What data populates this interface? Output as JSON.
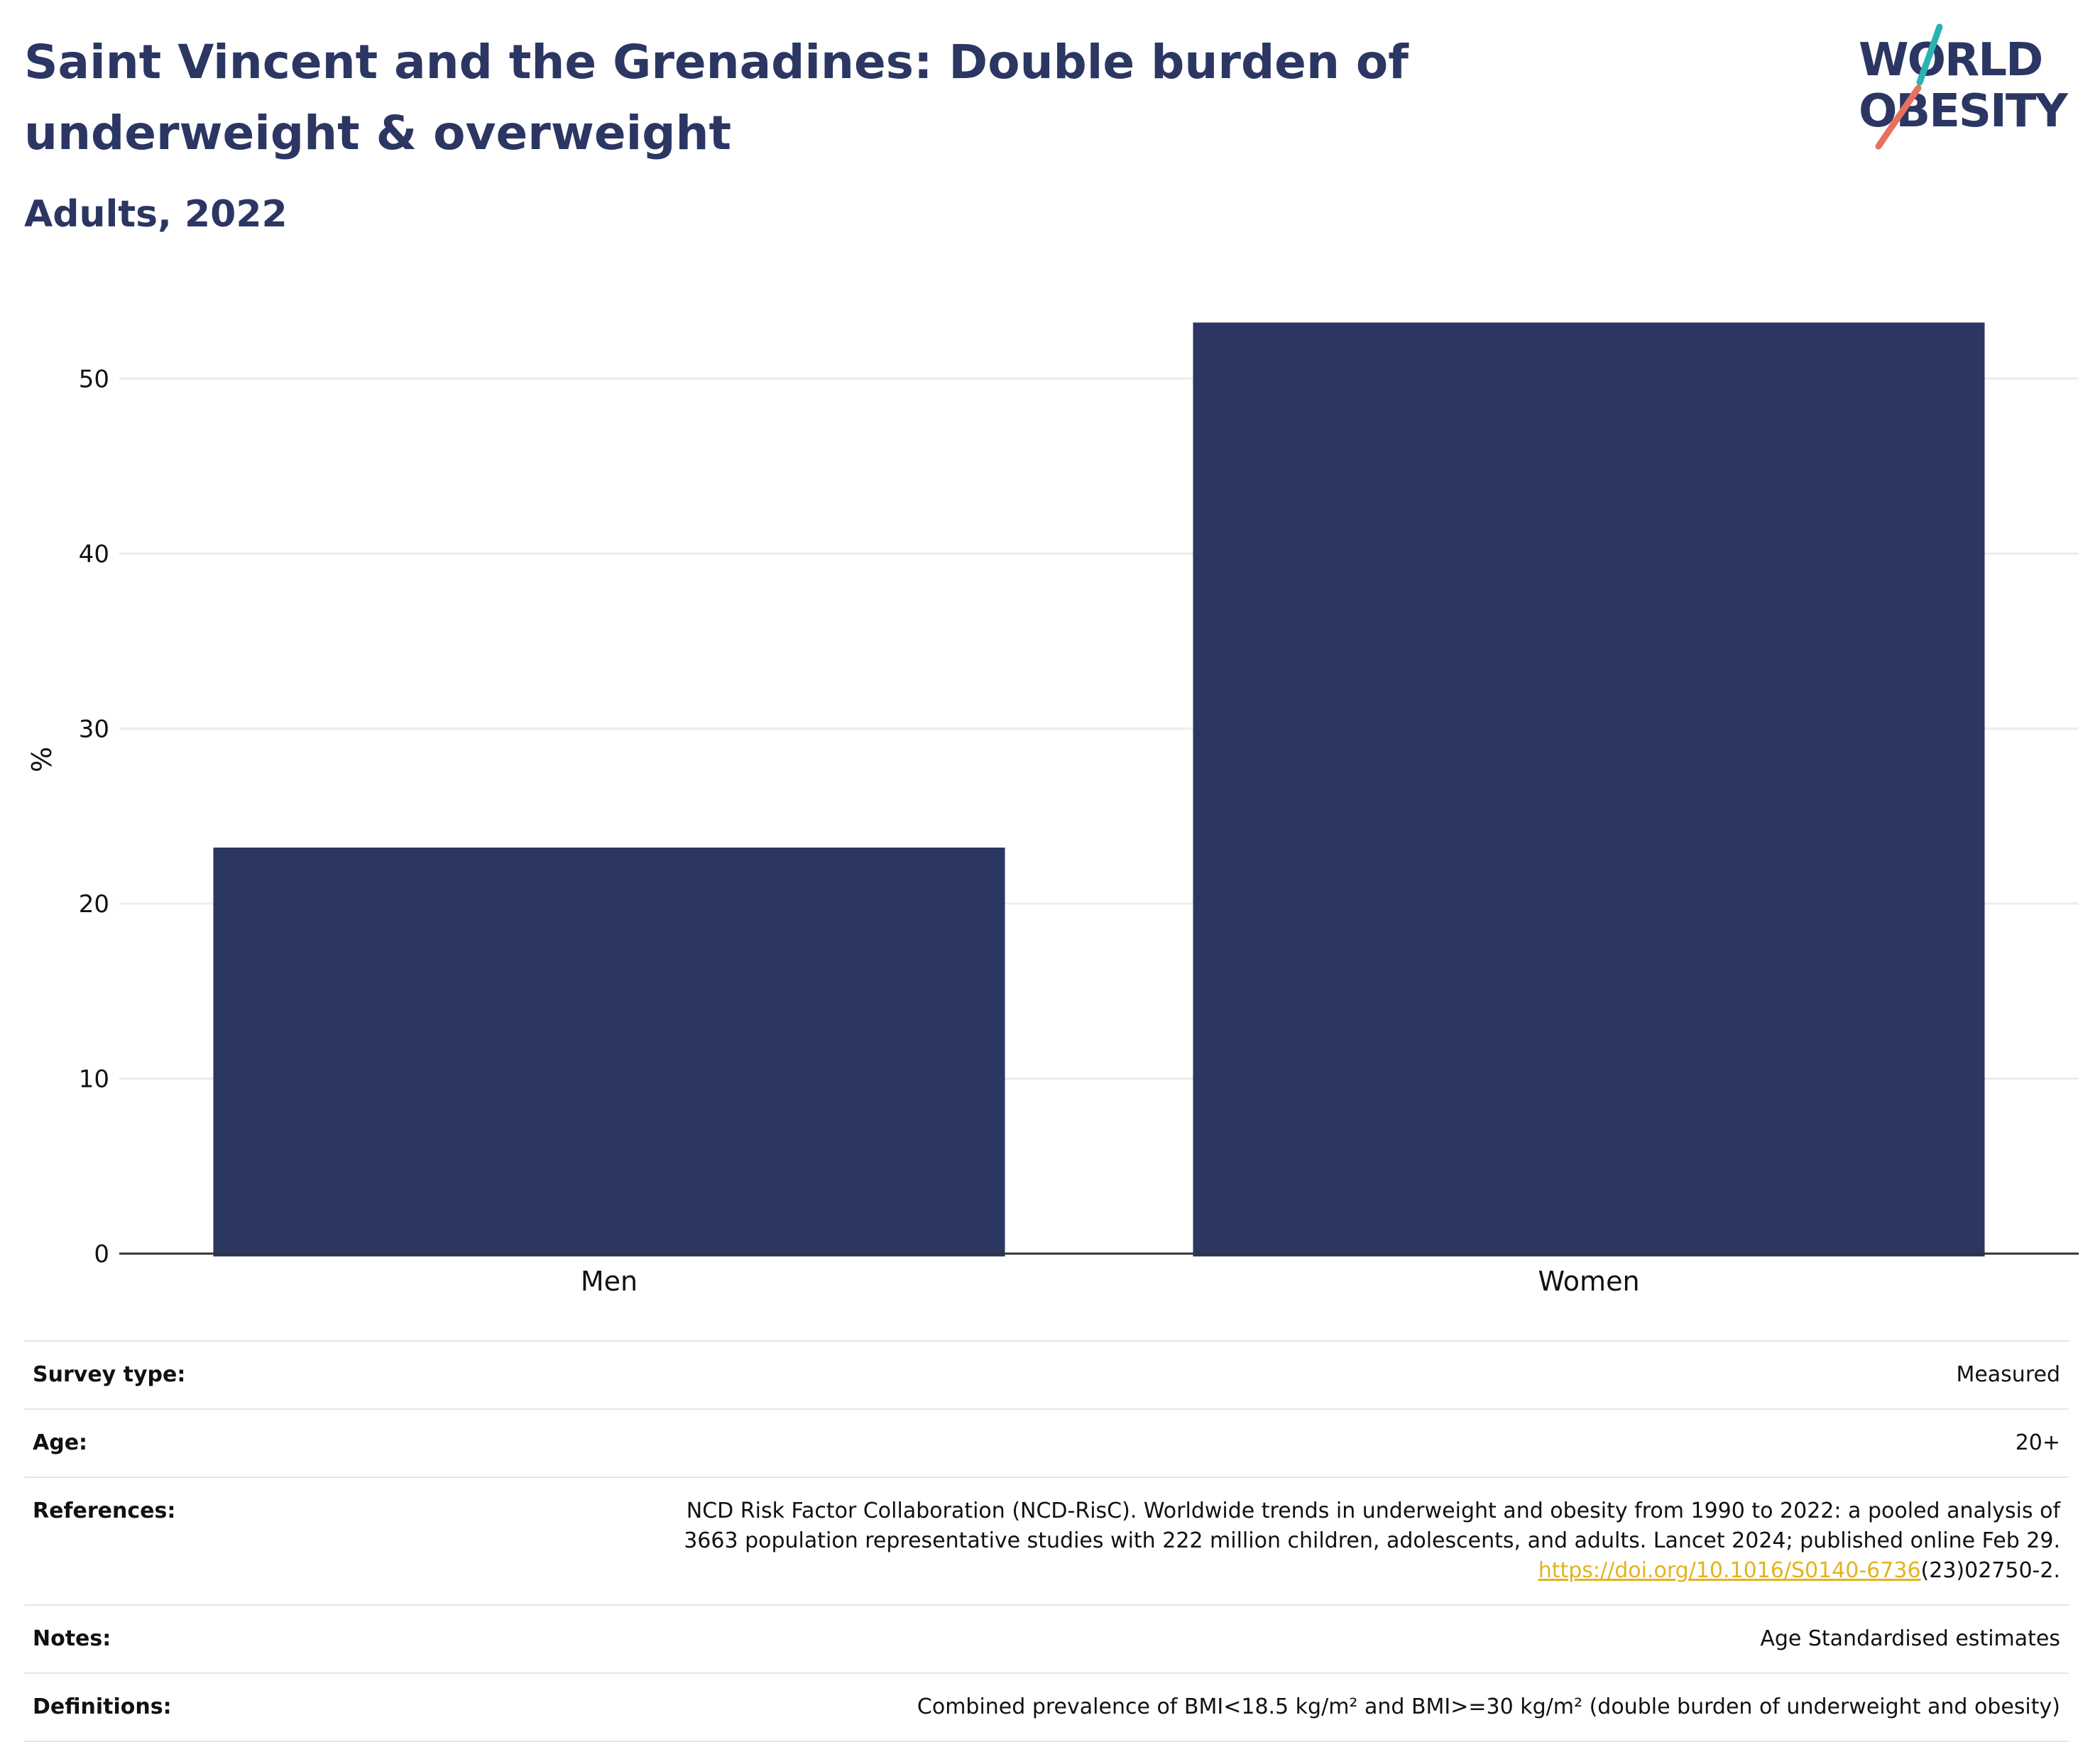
{
  "header": {
    "title": "Saint Vincent and the Grenadines: Double burden of underweight & overweight",
    "subtitle": "Adults, 2022"
  },
  "logo": {
    "line1": "WORLD",
    "line2": "OBESITY",
    "colors": {
      "text": "#2b3663",
      "slash_top": "#2bb3b1",
      "slash_bottom": "#e8705f"
    }
  },
  "colors": {
    "bar": "#2b3663",
    "grid": "#ececec",
    "axis": "#333333"
  },
  "chart_data": {
    "type": "bar",
    "categories": [
      "Men",
      "Women"
    ],
    "values": [
      23.2,
      53.2
    ],
    "ylabel": "%",
    "ylim": [
      0,
      55
    ],
    "yticks": [
      0,
      10,
      20,
      30,
      40,
      50
    ],
    "grid": true
  },
  "info": {
    "survey_type": {
      "label": "Survey type:",
      "value": "Measured"
    },
    "age": {
      "label": "Age:",
      "value": "20+"
    },
    "references": {
      "label": "References:",
      "line1": "NCD Risk Factor Collaboration (NCD-RisC). Worldwide trends in underweight and obesity from 1990 to 2022: a pooled analysis of",
      "line2": "3663 population representative studies with 222 million children, adolescents, and adults. Lancet 2024; published online Feb 29.",
      "link": "https://doi.org/10.1016/S0140-6736",
      "link_suffix": "(23)02750-2."
    },
    "notes": {
      "label": "Notes:",
      "value": "Age Standardised estimates"
    },
    "definitions": {
      "label": "Definitions:",
      "value": "Combined prevalence of BMI<18.5 kg/m² and BMI>=30 kg/m² (double burden of underweight and obesity)"
    }
  }
}
